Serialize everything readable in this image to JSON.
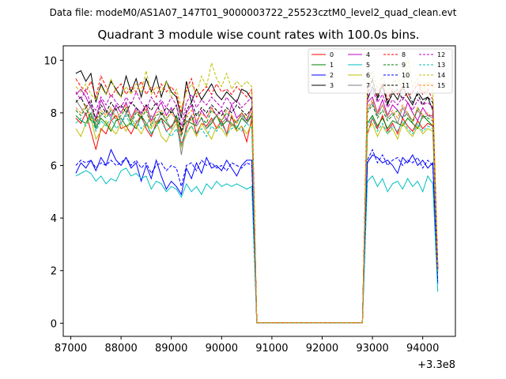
{
  "suptitle": "Data file: modeM0/AS1A07_147T01_9000003722_25523cztM0_level2_quad_clean.evt",
  "chart_data": {
    "type": "line",
    "title": "Quadrant 3 module wise count rates with 100.0s bins.",
    "xlabel": "",
    "ylabel": "",
    "x_offset_label": "+3.3e8",
    "xlim": [
      86850,
      94650
    ],
    "ylim": [
      -0.5,
      10.55
    ],
    "xticks": [
      87000,
      88000,
      89000,
      90000,
      91000,
      92000,
      93000,
      94000
    ],
    "yticks": [
      0,
      2,
      4,
      6,
      8,
      10
    ],
    "legend_position": "top-right",
    "x": [
      87100,
      87200,
      87300,
      87400,
      87500,
      87600,
      87700,
      87800,
      87900,
      88000,
      88100,
      88200,
      88300,
      88400,
      88500,
      88600,
      88700,
      88800,
      88900,
      89000,
      89100,
      89200,
      89300,
      89400,
      89500,
      89600,
      89700,
      89800,
      89900,
      90000,
      90100,
      90200,
      90300,
      90400,
      90500,
      90600,
      90700,
      90800,
      92800,
      92900,
      93000,
      93100,
      93200,
      93300,
      93400,
      93500,
      93600,
      93700,
      93800,
      93900,
      94000,
      94100,
      94200,
      94300
    ],
    "series": [
      {
        "name": "0",
        "color": "#ff0000",
        "dash": "solid",
        "values": [
          7.8,
          7.6,
          8.0,
          7.3,
          6.6,
          7.4,
          7.2,
          7.7,
          7.9,
          7.4,
          7.5,
          7.2,
          7.6,
          7.9,
          7.4,
          7.1,
          7.6,
          7.8,
          7.3,
          7.5,
          7.7,
          6.8,
          7.4,
          7.9,
          7.2,
          7.6,
          7.5,
          7.8,
          7.4,
          7.7,
          7.2,
          7.9,
          7.3,
          7.5,
          6.9,
          7.8,
          0.02,
          0.02,
          0.02,
          7.2,
          7.8,
          7.4,
          7.9,
          7.3,
          7.6,
          7.2,
          7.8,
          7.5,
          7.3,
          7.7,
          7.4,
          7.6,
          7.5,
          2.0
        ]
      },
      {
        "name": "1",
        "color": "#008000",
        "dash": "solid",
        "values": [
          7.9,
          7.7,
          7.6,
          8.0,
          7.4,
          7.8,
          7.6,
          7.3,
          7.7,
          7.8,
          7.5,
          7.6,
          7.4,
          7.9,
          7.6,
          7.2,
          7.5,
          7.8,
          7.6,
          7.4,
          7.9,
          7.3,
          7.7,
          7.6,
          7.5,
          7.8,
          7.4,
          7.6,
          7.9,
          7.5,
          7.7,
          7.6,
          7.4,
          7.8,
          7.6,
          7.9,
          0.02,
          0.02,
          0.02,
          7.6,
          7.9,
          7.5,
          7.8,
          7.4,
          7.7,
          7.6,
          7.5,
          7.8,
          7.6,
          7.4,
          7.9,
          7.7,
          7.5,
          2.1
        ]
      },
      {
        "name": "2",
        "color": "#0000ff",
        "dash": "solid",
        "values": [
          5.7,
          6.1,
          5.9,
          6.2,
          5.8,
          6.3,
          6.0,
          6.6,
          6.2,
          6.0,
          6.3,
          5.9,
          6.1,
          5.4,
          6.0,
          5.5,
          6.2,
          5.6,
          5.1,
          5.4,
          5.2,
          4.9,
          5.9,
          5.5,
          6.1,
          5.7,
          6.3,
          5.9,
          6.0,
          5.8,
          6.2,
          5.9,
          5.6,
          6.0,
          6.2,
          6.2,
          0.02,
          0.02,
          0.02,
          6.1,
          6.4,
          6.3,
          6.1,
          6.2,
          6.0,
          5.7,
          6.3,
          6.1,
          6.4,
          6.0,
          6.2,
          5.9,
          6.1,
          1.5
        ]
      },
      {
        "name": "3",
        "color": "#000000",
        "dash": "solid",
        "values": [
          9.5,
          9.6,
          9.2,
          9.5,
          8.4,
          9.1,
          8.7,
          9.2,
          8.9,
          8.6,
          9.4,
          8.8,
          9.3,
          8.6,
          9.3,
          8.8,
          9.4,
          8.6,
          9.2,
          8.8,
          8.6,
          7.8,
          9.2,
          8.4,
          8.9,
          8.5,
          8.8,
          9.1,
          8.7,
          8.5,
          8.8,
          8.6,
          8.4,
          8.9,
          8.8,
          8.5,
          0.02,
          0.02,
          0.02,
          8.5,
          9.0,
          8.6,
          9.1,
          8.3,
          8.8,
          8.5,
          9.0,
          8.6,
          8.3,
          8.8,
          8.5,
          8.6,
          8.1,
          2.2
        ]
      },
      {
        "name": "4",
        "color": "#bf00bf",
        "dash": "solid",
        "values": [
          8.7,
          8.9,
          8.6,
          8.2,
          7.8,
          8.5,
          8.1,
          7.9,
          8.3,
          8.0,
          8.4,
          7.8,
          8.2,
          8.0,
          8.3,
          7.7,
          8.1,
          8.4,
          7.9,
          8.2,
          7.7,
          7.2,
          8.0,
          8.3,
          7.6,
          8.1,
          7.8,
          8.2,
          7.9,
          8.1,
          7.7,
          8.3,
          7.8,
          8.0,
          7.7,
          8.2,
          0.02,
          0.02,
          0.02,
          8.4,
          8.6,
          8.0,
          8.5,
          7.9,
          8.3,
          8.1,
          7.8,
          8.4,
          8.0,
          7.7,
          8.2,
          7.9,
          7.9,
          2.1
        ]
      },
      {
        "name": "5",
        "color": "#00bfbf",
        "dash": "solid",
        "values": [
          5.6,
          5.7,
          5.8,
          5.7,
          5.4,
          5.6,
          5.3,
          5.5,
          5.4,
          5.8,
          5.9,
          5.6,
          5.7,
          5.5,
          5.6,
          5.1,
          5.4,
          5.3,
          5.0,
          5.2,
          5.1,
          4.8,
          5.3,
          5.0,
          5.2,
          4.9,
          5.3,
          5.1,
          5.4,
          5.2,
          5.3,
          5.2,
          5.3,
          5.2,
          5.1,
          5.2,
          0.02,
          0.02,
          0.02,
          5.4,
          5.6,
          5.2,
          5.5,
          5.0,
          5.3,
          5.4,
          5.1,
          5.5,
          5.2,
          5.4,
          5.0,
          5.6,
          5.3,
          1.2
        ]
      },
      {
        "name": "6",
        "color": "#bfbf00",
        "dash": "solid",
        "values": [
          7.4,
          7.1,
          7.6,
          7.8,
          7.0,
          7.3,
          7.7,
          7.4,
          7.2,
          7.6,
          7.3,
          7.8,
          7.5,
          7.2,
          7.6,
          7.4,
          7.7,
          7.1,
          6.9,
          7.3,
          7.6,
          6.7,
          7.2,
          7.5,
          7.1,
          7.6,
          7.3,
          7.0,
          7.5,
          7.4,
          7.1,
          7.6,
          7.3,
          7.5,
          7.2,
          7.6,
          0.02,
          0.02,
          0.02,
          7.3,
          7.6,
          7.1,
          7.5,
          7.2,
          7.4,
          7.0,
          7.6,
          7.3,
          7.1,
          7.5,
          7.2,
          7.4,
          7.3,
          1.9
        ]
      },
      {
        "name": "7",
        "color": "#808080",
        "dash": "solid",
        "values": [
          8.5,
          8.2,
          7.9,
          8.3,
          7.5,
          7.9,
          8.1,
          7.8,
          8.2,
          7.6,
          8.0,
          7.7,
          8.1,
          7.8,
          7.5,
          7.9,
          7.6,
          8.0,
          7.7,
          7.4,
          7.8,
          6.4,
          7.6,
          7.9,
          7.5,
          7.8,
          7.4,
          7.7,
          7.9,
          7.6,
          7.8,
          7.5,
          7.7,
          7.9,
          7.6,
          8.0,
          0.02,
          0.02,
          0.02,
          8.1,
          8.4,
          7.9,
          8.3,
          7.8,
          8.0,
          7.6,
          8.2,
          7.9,
          7.7,
          8.1,
          7.8,
          7.9,
          7.8,
          2.0
        ]
      },
      {
        "name": "8",
        "color": "#ff0000",
        "dash": "dashed",
        "values": [
          9.3,
          9.0,
          8.8,
          9.2,
          8.6,
          9.4,
          9.0,
          8.6,
          8.9,
          9.1,
          8.7,
          9.0,
          8.8,
          9.2,
          8.7,
          9.0,
          8.6,
          9.1,
          8.8,
          9.0,
          8.7,
          8.0,
          8.9,
          9.3,
          8.6,
          8.8,
          9.0,
          8.7,
          9.1,
          8.8,
          8.9,
          8.7,
          9.0,
          8.8,
          8.6,
          8.9,
          0.02,
          0.02,
          0.02,
          8.9,
          9.2,
          8.7,
          9.1,
          8.5,
          8.9,
          8.7,
          9.0,
          8.6,
          8.8,
          9.1,
          8.7,
          8.9,
          8.5,
          2.2
        ]
      },
      {
        "name": "9",
        "color": "#008000",
        "dash": "dashed",
        "values": [
          8.1,
          7.9,
          8.2,
          7.7,
          7.6,
          8.0,
          7.8,
          8.1,
          7.7,
          7.9,
          8.2,
          7.6,
          8.0,
          7.8,
          8.1,
          7.5,
          7.9,
          8.0,
          7.7,
          8.1,
          7.8,
          7.1,
          7.9,
          7.7,
          8.0,
          7.8,
          7.6,
          8.1,
          7.9,
          7.7,
          8.0,
          7.8,
          7.6,
          8.0,
          7.7,
          7.9,
          0.02,
          0.02,
          0.02,
          8.0,
          8.3,
          7.8,
          8.1,
          7.7,
          7.9,
          8.1,
          7.8,
          8.0,
          7.6,
          8.2,
          7.9,
          7.8,
          7.7,
          2.0
        ]
      },
      {
        "name": "10",
        "color": "#0000ff",
        "dash": "dashed",
        "values": [
          6.0,
          6.2,
          6.1,
          6.2,
          5.9,
          6.1,
          6.0,
          6.2,
          6.0,
          6.1,
          6.3,
          6.0,
          6.2,
          5.9,
          6.1,
          5.7,
          6.0,
          6.1,
          5.8,
          6.0,
          5.9,
          5.2,
          6.0,
          6.1,
          5.8,
          6.2,
          6.0,
          6.1,
          5.9,
          6.0,
          5.8,
          6.1,
          6.0,
          5.9,
          6.1,
          6.0,
          0.02,
          0.02,
          0.02,
          6.2,
          6.6,
          6.1,
          6.4,
          6.0,
          6.2,
          6.3,
          6.0,
          6.2,
          6.1,
          6.3,
          5.9,
          6.2,
          6.0,
          1.6
        ]
      },
      {
        "name": "11",
        "color": "#000000",
        "dash": "dashed",
        "values": [
          8.4,
          8.6,
          8.2,
          8.5,
          7.7,
          8.3,
          8.0,
          8.4,
          8.1,
          8.3,
          8.0,
          8.4,
          8.2,
          7.9,
          8.3,
          8.1,
          8.4,
          7.9,
          8.2,
          8.0,
          8.3,
          7.3,
          8.1,
          8.4,
          7.9,
          8.2,
          8.0,
          8.3,
          8.1,
          7.9,
          8.2,
          8.0,
          8.3,
          8.1,
          7.9,
          8.2,
          0.02,
          0.02,
          0.02,
          8.7,
          9.3,
          8.5,
          9.0,
          8.4,
          8.7,
          8.9,
          8.5,
          8.8,
          8.4,
          8.7,
          8.3,
          8.6,
          8.4,
          2.1
        ]
      },
      {
        "name": "12",
        "color": "#bf00bf",
        "dash": "dashed",
        "values": [
          8.8,
          8.5,
          8.9,
          8.3,
          8.1,
          8.6,
          8.3,
          8.7,
          8.4,
          8.2,
          8.6,
          8.3,
          8.8,
          8.4,
          8.1,
          8.6,
          8.3,
          8.5,
          8.2,
          8.6,
          8.3,
          7.5,
          8.4,
          8.7,
          8.2,
          8.5,
          8.3,
          8.6,
          8.4,
          8.2,
          8.6,
          8.3,
          8.5,
          8.2,
          8.4,
          8.6,
          0.02,
          0.02,
          0.02,
          8.6,
          8.9,
          8.4,
          8.7,
          8.2,
          8.5,
          8.3,
          8.6,
          8.4,
          8.1,
          8.5,
          8.3,
          8.4,
          8.2,
          2.1
        ]
      },
      {
        "name": "13",
        "color": "#00bfbf",
        "dash": "dashed",
        "values": [
          7.6,
          7.8,
          7.5,
          7.9,
          7.3,
          7.7,
          7.5,
          7.8,
          7.4,
          7.6,
          7.9,
          7.5,
          7.7,
          7.4,
          7.6,
          7.2,
          7.5,
          7.7,
          7.3,
          7.1,
          7.4,
          6.8,
          7.3,
          7.5,
          7.2,
          7.4,
          7.1,
          7.5,
          7.3,
          7.6,
          7.2,
          7.4,
          7.5,
          7.3,
          7.6,
          7.4,
          0.02,
          0.02,
          0.02,
          7.5,
          7.8,
          7.3,
          7.6,
          7.2,
          7.5,
          7.3,
          7.7,
          7.4,
          7.2,
          7.6,
          7.3,
          7.5,
          7.4,
          1.9
        ]
      },
      {
        "name": "14",
        "color": "#bfbf00",
        "dash": "dashed",
        "values": [
          9.0,
          8.8,
          9.1,
          8.7,
          8.5,
          9.0,
          8.7,
          9.3,
          8.8,
          8.6,
          9.0,
          8.7,
          9.1,
          8.8,
          9.6,
          8.7,
          9.0,
          8.8,
          9.2,
          8.6,
          8.9,
          8.2,
          8.8,
          9.1,
          8.7,
          9.4,
          9.0,
          9.9,
          9.3,
          9.0,
          9.5,
          8.9,
          9.2,
          9.0,
          9.2,
          9.0,
          0.02,
          0.02,
          0.02,
          9.1,
          9.6,
          8.9,
          9.4,
          8.8,
          9.1,
          9.3,
          8.9,
          10.1,
          9.0,
          9.3,
          8.8,
          9.2,
          9.0,
          2.3
        ]
      },
      {
        "name": "15",
        "color": "#ff8000",
        "dash": "dashed",
        "values": [
          8.2,
          8.0,
          8.3,
          7.8,
          7.7,
          8.1,
          7.9,
          8.2,
          7.8,
          8.0,
          8.3,
          7.8,
          8.1,
          7.9,
          8.2,
          7.6,
          8.0,
          8.1,
          7.8,
          8.0,
          7.7,
          7.2,
          7.9,
          8.1,
          7.7,
          8.0,
          7.8,
          8.2,
          7.9,
          7.7,
          8.1,
          7.9,
          7.6,
          8.0,
          7.8,
          8.1,
          0.02,
          0.02,
          0.02,
          8.2,
          8.5,
          8.0,
          8.3,
          7.9,
          8.1,
          7.8,
          8.3,
          8.0,
          7.7,
          8.2,
          7.9,
          8.0,
          7.8,
          2.0
        ]
      }
    ]
  }
}
